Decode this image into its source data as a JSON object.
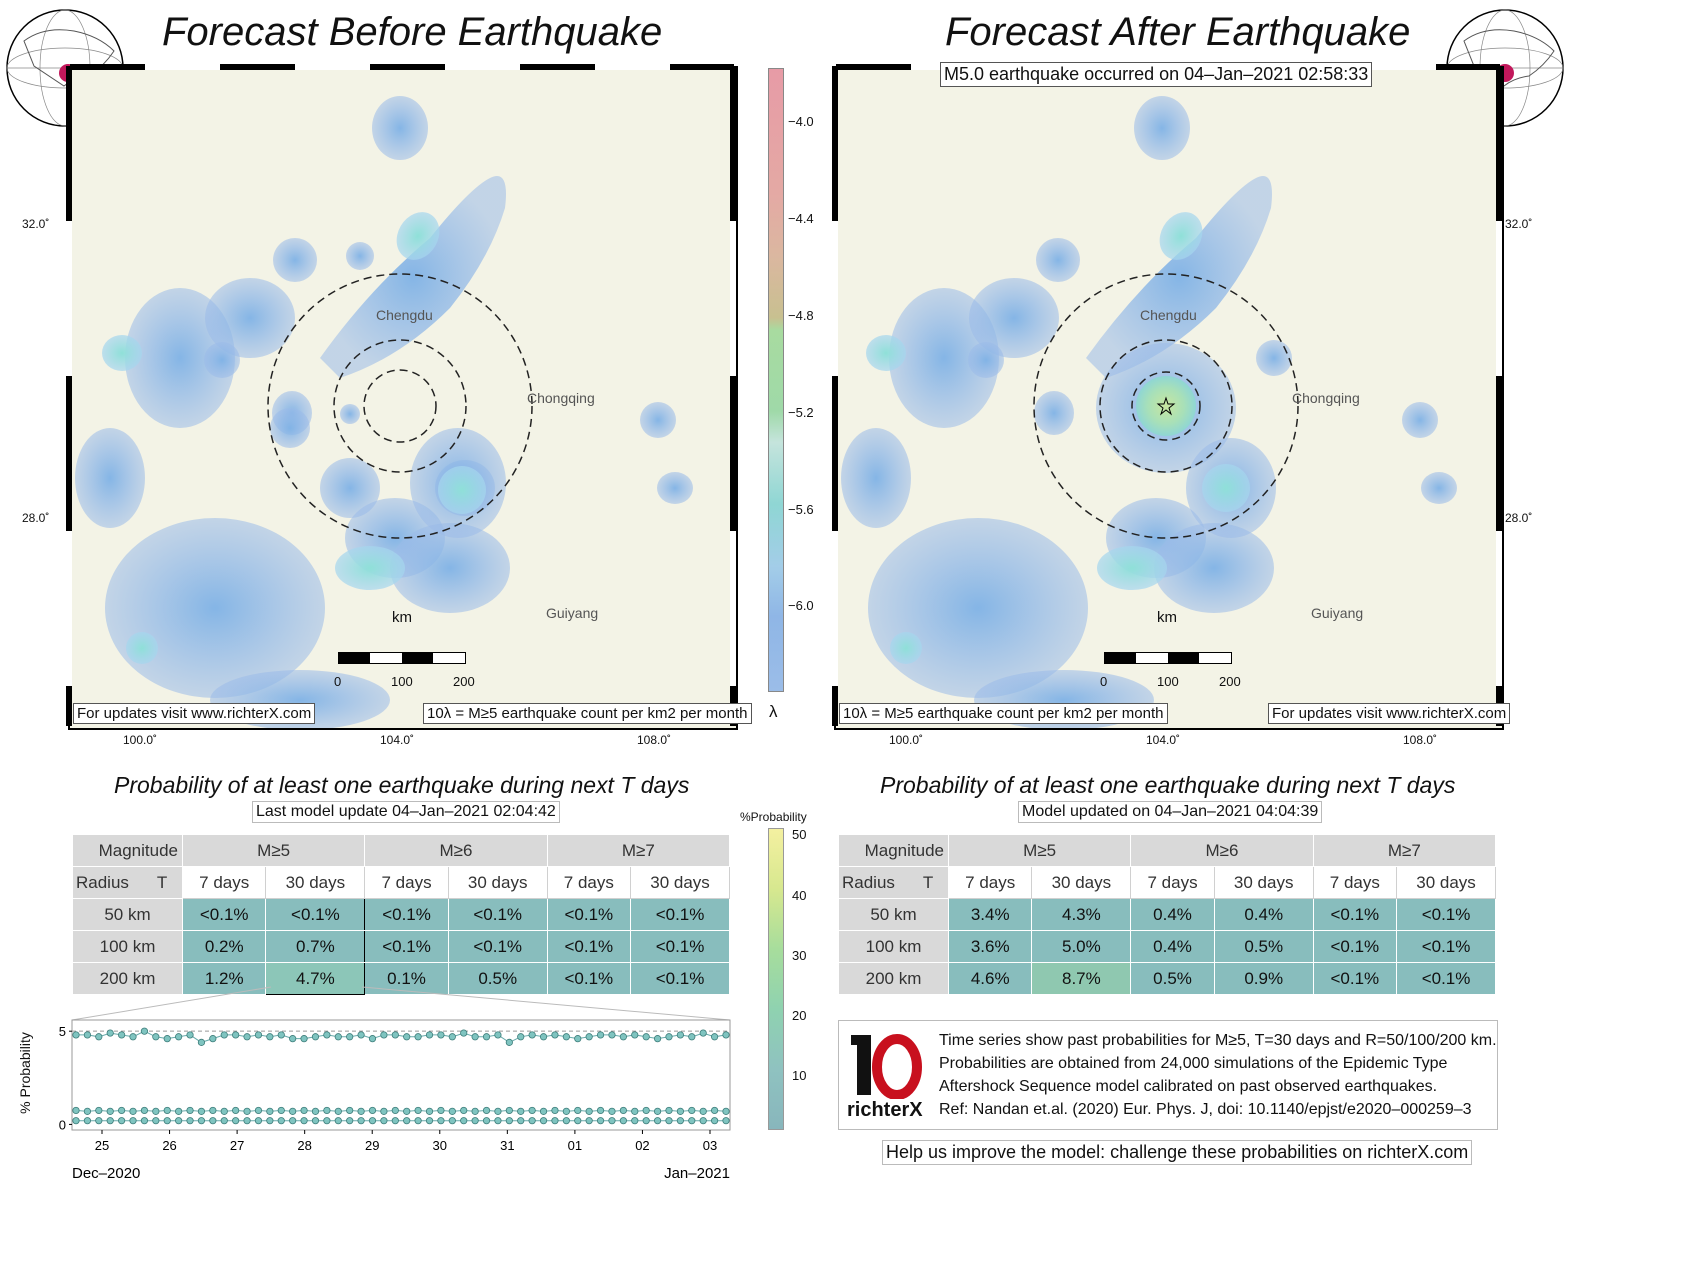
{
  "left_panel": {
    "title": "Forecast Before Earthquake",
    "cities": {
      "chengdu": "Chengdu",
      "chongqing": "Chongqing",
      "guiyang": "Guiyang"
    },
    "scale_unit": "km",
    "scale_ticks": [
      "0",
      "100",
      "200"
    ],
    "footer_left": "For updates visit www.richterX.com",
    "footer_right": "10λ = M≥5 earthquake count per km2 per month",
    "lon_ticks": [
      "100.0˚",
      "104.0˚",
      "108.0˚"
    ],
    "lat_ticks": [
      "32.0˚",
      "28.0˚"
    ]
  },
  "right_panel": {
    "title": "Forecast After Earthquake",
    "event_label": "M5.0 earthquake occurred on 04–Jan–2021 02:58:33",
    "cities": {
      "chengdu": "Chengdu",
      "chongqing": "Chongqing",
      "guiyang": "Guiyang"
    },
    "scale_unit": "km",
    "scale_ticks": [
      "0",
      "100",
      "200"
    ],
    "footer_left": "10λ = M≥5 earthquake count per km2 per month",
    "footer_right": "For updates visit www.richterX.com",
    "lon_ticks": [
      "100.0˚",
      "104.0˚",
      "108.0˚"
    ],
    "lat_ticks": [
      "32.0˚",
      "28.0˚"
    ]
  },
  "lambda_colorbar": {
    "label": "λ",
    "ticks": [
      "−4.0",
      "−4.4",
      "−4.8",
      "−5.2",
      "−5.6",
      "−6.0"
    ]
  },
  "prob_colorbar": {
    "label": "%Probability",
    "ticks": [
      "50",
      "40",
      "30",
      "20",
      "10"
    ]
  },
  "left_table": {
    "title": "Probability of at least one earthquake during next T days",
    "update": "Last model update 04–Jan–2021 02:04:42",
    "corner_top": "Magnitude",
    "corner_left": "Radius",
    "corner_t": "T",
    "mags": [
      "M≥5",
      "M≥6",
      "M≥7"
    ],
    "periods": [
      "7 days",
      "30 days",
      "7 days",
      "30 days",
      "7 days",
      "30 days"
    ],
    "rows": [
      {
        "radius": "50 km",
        "values": [
          "<0.1%",
          "<0.1%",
          "<0.1%",
          "<0.1%",
          "<0.1%",
          "<0.1%"
        ]
      },
      {
        "radius": "100 km",
        "values": [
          "0.2%",
          "0.7%",
          "<0.1%",
          "<0.1%",
          "<0.1%",
          "<0.1%"
        ]
      },
      {
        "radius": "200 km",
        "values": [
          "1.2%",
          "4.7%",
          "0.1%",
          "0.5%",
          "<0.1%",
          "<0.1%"
        ]
      }
    ]
  },
  "right_table": {
    "title": "Probability of at least one earthquake during next T days",
    "update": "Model updated on 04–Jan–2021 04:04:39",
    "corner_top": "Magnitude",
    "corner_left": "Radius",
    "corner_t": "T",
    "mags": [
      "M≥5",
      "M≥6",
      "M≥7"
    ],
    "periods": [
      "7 days",
      "30 days",
      "7 days",
      "30 days",
      "7 days",
      "30 days"
    ],
    "rows": [
      {
        "radius": "50 km",
        "values": [
          "3.4%",
          "4.3%",
          "0.4%",
          "0.4%",
          "<0.1%",
          "<0.1%"
        ]
      },
      {
        "radius": "100 km",
        "values": [
          "3.6%",
          "5.0%",
          "0.4%",
          "0.5%",
          "<0.1%",
          "<0.1%"
        ]
      },
      {
        "radius": "200 km",
        "values": [
          "4.6%",
          "8.7%",
          "0.5%",
          "0.9%",
          "<0.1%",
          "<0.1%"
        ]
      }
    ]
  },
  "chart_data": {
    "type": "line",
    "ylabel": "% Probability",
    "yticks": [
      "0",
      "5"
    ],
    "ylim": [
      -0.3,
      5.6
    ],
    "xticks": [
      "25",
      "26",
      "27",
      "28",
      "29",
      "30",
      "31",
      "01",
      "02",
      "03"
    ],
    "x_month_left": "Dec–2020",
    "x_month_right": "Jan–2021",
    "series": [
      {
        "values": [
          4.8,
          4.8,
          4.7,
          4.9,
          4.8,
          4.7,
          5.0,
          4.7,
          4.6,
          4.7,
          4.8,
          4.4,
          4.6,
          4.8,
          4.8,
          4.7,
          4.8,
          4.7,
          4.8,
          4.6,
          4.6,
          4.7,
          4.8,
          4.7,
          4.7,
          4.8,
          4.6,
          4.8,
          4.8,
          4.7,
          4.7,
          4.8,
          4.8,
          4.7,
          4.9,
          4.7,
          4.7,
          4.8,
          4.4,
          4.7,
          4.8,
          4.7,
          4.8,
          4.7,
          4.6,
          4.7,
          4.8,
          4.8,
          4.7,
          4.8,
          4.7,
          4.6,
          4.7,
          4.8,
          4.7,
          4.9,
          4.7,
          4.8
        ]
      },
      {
        "values": [
          0.75,
          0.7,
          0.75,
          0.7,
          0.75,
          0.7,
          0.75,
          0.7,
          0.75,
          0.7,
          0.75,
          0.7,
          0.75,
          0.7,
          0.75,
          0.7,
          0.75,
          0.7,
          0.75,
          0.7,
          0.75,
          0.7,
          0.75,
          0.7,
          0.75,
          0.7,
          0.75,
          0.7,
          0.75,
          0.7,
          0.75,
          0.7,
          0.75,
          0.7,
          0.75,
          0.7,
          0.75,
          0.7,
          0.75,
          0.7,
          0.75,
          0.7,
          0.75,
          0.7,
          0.75,
          0.7,
          0.75,
          0.7,
          0.75,
          0.7,
          0.75,
          0.7,
          0.75,
          0.7,
          0.75,
          0.7,
          0.75,
          0.7
        ]
      },
      {
        "values": [
          0.2,
          0.2,
          0.2,
          0.2,
          0.2,
          0.2,
          0.2,
          0.2,
          0.2,
          0.2,
          0.2,
          0.2,
          0.2,
          0.2,
          0.2,
          0.2,
          0.2,
          0.2,
          0.2,
          0.2,
          0.2,
          0.2,
          0.2,
          0.2,
          0.2,
          0.2,
          0.2,
          0.2,
          0.2,
          0.2,
          0.2,
          0.2,
          0.2,
          0.2,
          0.2,
          0.2,
          0.2,
          0.2,
          0.2,
          0.2,
          0.2,
          0.2,
          0.2,
          0.2,
          0.2,
          0.2,
          0.2,
          0.2,
          0.2,
          0.2,
          0.2,
          0.2,
          0.2,
          0.2,
          0.2,
          0.2,
          0.2,
          0.2
        ]
      }
    ],
    "reference_line": 5
  },
  "info_box": {
    "logo_text": "richterX",
    "lines": [
      "Time series show past probabilities for M≥5, T=30 days and R=50/100/200 km.",
      "Probabilities are obtained from 24,000 simulations of the Epidemic Type",
      "Aftershock Sequence model calibrated on past observed earthquakes.",
      "Ref: Nandan et.al. (2020) Eur. Phys. J, doi: 10.1140/epjst/e2020–000259–3"
    ]
  },
  "bottom_note": "Help us improve the model: challenge these probabilities on richterX.com",
  "colors": {
    "cell": "#88bdbd",
    "header": "#d9d9d9",
    "map_bg": "#f3f3e6",
    "blob": "#9bb8e6"
  }
}
